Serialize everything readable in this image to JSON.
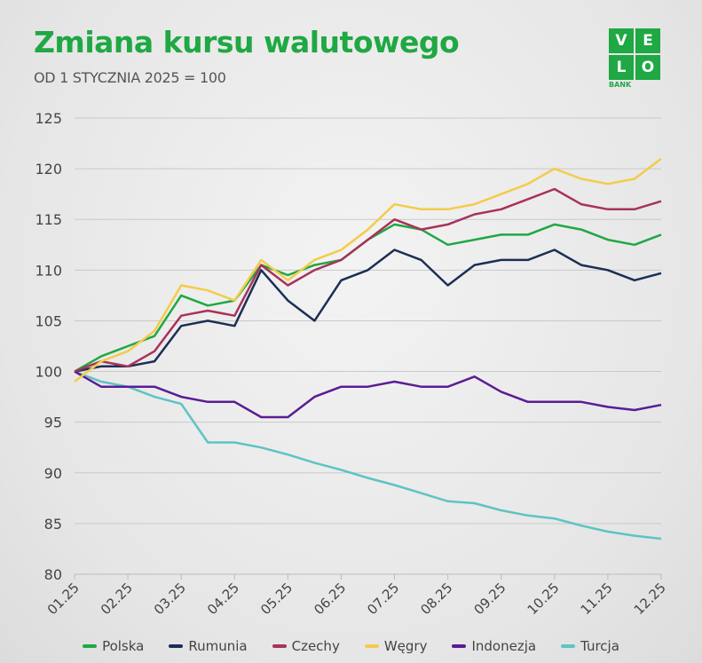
{
  "header": {
    "title": "Zmiana kursu walutowego",
    "subtitle": "OD 1 STYCZNIA 2025 = 100"
  },
  "logo": {
    "cells": [
      "V",
      "E",
      "L",
      "O"
    ],
    "bank": "BANK"
  },
  "chart_data": {
    "type": "line",
    "title": "Zmiana kursu walutowego",
    "subtitle": "OD 1 STYCZNIA 2025 = 100",
    "xlabel": "",
    "ylabel": "",
    "ylim": [
      80,
      125
    ],
    "yticks": [
      80,
      85,
      90,
      95,
      100,
      105,
      110,
      115,
      120,
      125
    ],
    "xticks": [
      "01.25",
      "02.25",
      "03.25",
      "04.25",
      "05.25",
      "06.25",
      "07.25",
      "08.25",
      "09.25",
      "10.25",
      "11.25",
      "12.25"
    ],
    "x_months": [
      0,
      0.5,
      1,
      1.5,
      2,
      2.5,
      3,
      3.5,
      4,
      4.5,
      5,
      5.5,
      6,
      6.5,
      7,
      7.5,
      8,
      8.5,
      9,
      9.5,
      10,
      10.5,
      11
    ],
    "grid": "horizontal",
    "legend": "bottom",
    "series": [
      {
        "name": "Polska",
        "color": "#1fa843",
        "values": [
          100,
          101.5,
          102.5,
          103.5,
          107.5,
          106.5,
          107,
          110.5,
          109.5,
          110.5,
          111,
          113,
          114.5,
          114,
          112.5,
          113,
          113.5,
          113.5,
          114.5,
          114,
          113,
          112.5,
          113.5
        ]
      },
      {
        "name": "Rumunia",
        "color": "#1b2f55",
        "values": [
          100,
          100.5,
          100.5,
          101,
          104.5,
          105,
          104.5,
          110,
          107,
          105,
          109,
          110,
          112,
          111,
          108.5,
          110.5,
          111,
          111,
          112,
          110.5,
          110,
          109,
          109.7
        ]
      },
      {
        "name": "Czechy",
        "color": "#a8325a",
        "values": [
          100,
          101,
          100.5,
          102,
          105.5,
          106,
          105.5,
          110.5,
          108.5,
          110,
          111,
          113,
          115,
          114,
          114.5,
          115.5,
          116,
          117,
          118,
          116.5,
          116,
          116,
          116.8
        ]
      },
      {
        "name": "Węgry",
        "color": "#f3cc4a",
        "values": [
          99,
          101,
          102,
          104,
          108.5,
          108,
          107,
          111,
          109,
          111,
          112,
          114,
          116.5,
          116,
          116,
          116.5,
          117.5,
          118.5,
          120,
          119,
          118.5,
          119,
          121
        ]
      },
      {
        "name": "Indonezja",
        "color": "#5a1c96",
        "values": [
          100,
          98.5,
          98.5,
          98.5,
          97.5,
          97,
          97,
          95.5,
          95.5,
          97.5,
          98.5,
          98.5,
          99,
          98.5,
          98.5,
          99.5,
          98,
          97,
          97,
          97,
          96.5,
          96.2,
          96.7
        ]
      },
      {
        "name": "Turcja",
        "color": "#5ec3c3",
        "values": [
          100,
          99,
          98.5,
          97.5,
          96.8,
          93,
          93,
          92.5,
          91.8,
          91,
          90.3,
          89.5,
          88.8,
          88,
          87.2,
          87,
          86.3,
          85.8,
          85.5,
          84.8,
          84.2,
          83.8,
          83.5
        ]
      }
    ]
  }
}
